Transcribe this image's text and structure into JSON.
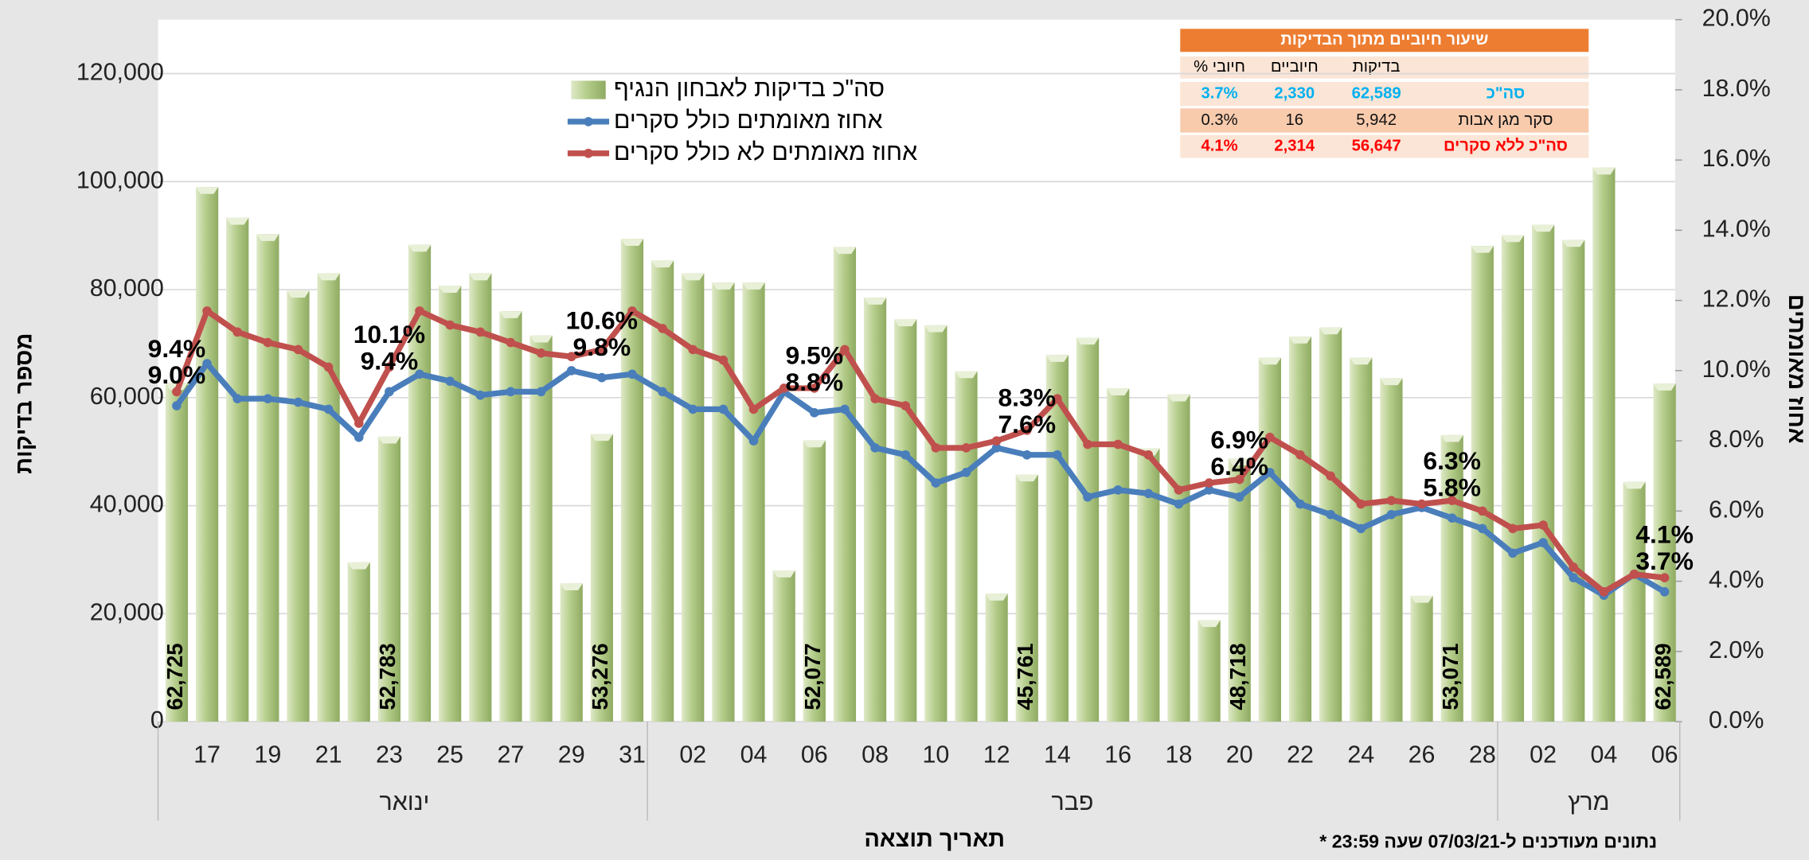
{
  "chart_data": {
    "type": "bar",
    "categories": [
      null,
      "17",
      null,
      "19",
      null,
      "21",
      null,
      "23",
      null,
      "25",
      null,
      "27",
      null,
      "29",
      null,
      "31",
      null,
      "02",
      null,
      "04",
      null,
      "06",
      null,
      "08",
      null,
      "10",
      null,
      "12",
      null,
      "14",
      null,
      "16",
      null,
      "18",
      null,
      "20",
      null,
      "22",
      null,
      "24",
      null,
      "26",
      null,
      "28",
      null,
      "02",
      null,
      "04",
      null,
      "06"
    ],
    "month_groups": [
      {
        "label": "ינואר",
        "days": 16
      },
      {
        "label": "פבר",
        "days": 28
      },
      {
        "label": "מרץ",
        "days": 6
      }
    ],
    "series": [
      {
        "name": "סה\"כ בדיקות לאבחון הנגיף",
        "type": "bar",
        "color": "#a9c47f",
        "values": [
          62725,
          99000,
          93300,
          90300,
          79800,
          83000,
          29500,
          52783,
          88300,
          80700,
          83000,
          76000,
          71500,
          25600,
          53276,
          89400,
          85400,
          83000,
          81300,
          81300,
          28000,
          52077,
          87900,
          78500,
          74500,
          73400,
          64900,
          23700,
          45761,
          67900,
          71100,
          61700,
          50600,
          60600,
          18800,
          48718,
          67400,
          71300,
          73000,
          67400,
          63600,
          23300,
          53071,
          88100,
          90100,
          92000,
          89200,
          102600,
          44400,
          62589
        ],
        "value_labels": [
          "62,725",
          null,
          null,
          null,
          null,
          null,
          null,
          "52,783",
          null,
          null,
          null,
          null,
          null,
          null,
          "53,276",
          null,
          null,
          null,
          null,
          null,
          null,
          "52,077",
          null,
          null,
          null,
          null,
          null,
          null,
          "45,761",
          null,
          null,
          null,
          null,
          null,
          null,
          "48,718",
          null,
          null,
          null,
          null,
          null,
          null,
          "53,071",
          null,
          null,
          null,
          null,
          null,
          null,
          "62,589"
        ]
      },
      {
        "name": "אחוז מאומתים כולל סקרים",
        "type": "line",
        "axis": "y2",
        "color": "#4a7ebb",
        "values": [
          9.0,
          10.2,
          9.2,
          9.2,
          9.1,
          8.9,
          8.1,
          9.4,
          9.9,
          9.7,
          9.3,
          9.4,
          9.4,
          10.0,
          9.8,
          9.9,
          9.4,
          8.9,
          8.9,
          8.0,
          9.4,
          8.8,
          8.9,
          7.8,
          7.6,
          6.8,
          7.1,
          7.8,
          7.6,
          7.6,
          6.4,
          6.6,
          6.5,
          6.2,
          6.6,
          6.4,
          7.1,
          6.2,
          5.9,
          5.5,
          5.9,
          6.1,
          5.8,
          5.5,
          4.8,
          5.1,
          4.1,
          3.6,
          4.2,
          3.7
        ],
        "value_labels": [
          "9.0%",
          null,
          null,
          null,
          null,
          null,
          null,
          "9.4%",
          null,
          null,
          null,
          null,
          null,
          null,
          "9.8%",
          null,
          null,
          null,
          null,
          null,
          null,
          "8.8%",
          null,
          null,
          null,
          null,
          null,
          null,
          "7.6%",
          null,
          null,
          null,
          null,
          null,
          null,
          "6.4%",
          null,
          null,
          null,
          null,
          null,
          null,
          "5.8%",
          null,
          null,
          null,
          null,
          null,
          null,
          "3.7%"
        ]
      },
      {
        "name": "אחוז מאומתים לא כולל סקרים",
        "type": "line",
        "axis": "y2",
        "color": "#c0504d",
        "values": [
          9.4,
          11.7,
          11.1,
          10.8,
          10.6,
          10.1,
          8.5,
          10.1,
          11.7,
          11.3,
          11.1,
          10.8,
          10.5,
          10.4,
          10.6,
          11.7,
          11.2,
          10.6,
          10.3,
          8.9,
          9.5,
          9.5,
          10.6,
          9.2,
          9.0,
          7.8,
          7.8,
          8.0,
          8.3,
          9.2,
          7.9,
          7.9,
          7.6,
          6.6,
          6.8,
          6.9,
          8.1,
          7.6,
          7.0,
          6.2,
          6.3,
          6.2,
          6.3,
          6.0,
          5.5,
          5.6,
          4.4,
          3.7,
          4.2,
          4.1
        ],
        "value_labels": [
          "9.4%",
          null,
          null,
          null,
          null,
          null,
          null,
          "10.1%",
          null,
          null,
          null,
          null,
          null,
          null,
          "10.6%",
          null,
          null,
          null,
          null,
          null,
          null,
          "9.5%",
          null,
          null,
          null,
          null,
          null,
          null,
          "8.3%",
          null,
          null,
          null,
          null,
          null,
          null,
          "6.9%",
          null,
          null,
          null,
          null,
          null,
          null,
          "6.3%",
          null,
          null,
          null,
          null,
          null,
          null,
          "4.1%"
        ]
      }
    ],
    "ylim": [
      0,
      130000
    ],
    "yticks": [
      0,
      {
        "value": 20000,
        "label": "20,000"
      },
      {
        "value": 40000,
        "label": "40,000"
      },
      {
        "value": 60000,
        "label": "60,000"
      },
      {
        "value": 80000,
        "label": "80,000"
      },
      {
        "value": 100000,
        "label": "100,000"
      },
      {
        "value": 120000,
        "label": "120,000"
      }
    ],
    "y2lim": [
      0,
      20
    ],
    "y2ticks": [
      {
        "value": 0,
        "label": "0.0%"
      },
      {
        "value": 2,
        "label": "2.0%"
      },
      {
        "value": 4,
        "label": "4.0%"
      },
      {
        "value": 6,
        "label": "6.0%"
      },
      {
        "value": 8,
        "label": "8.0%"
      },
      {
        "value": 10,
        "label": "10.0%"
      },
      {
        "value": 12,
        "label": "12.0%"
      },
      {
        "value": 14,
        "label": "14.0%"
      },
      {
        "value": 16,
        "label": "16.0%"
      },
      {
        "value": 18,
        "label": "18.0%"
      },
      {
        "value": 20,
        "label": "20.0%"
      }
    ],
    "grid": true,
    "xlabel": "תאריך תוצאה",
    "ylabel": "מספר בדיקות",
    "y2label": "אחוז מאומתים",
    "note": "* נתונים מעודכנים ל-07/03/21 שעה 23:59"
  },
  "table": {
    "title": "שיעור חיוביים מתוך הבדיקות",
    "header": [
      "בדיקות",
      "חיוביים",
      "% חיובי"
    ],
    "rows": [
      [
        "סה\"כ",
        "62,589",
        "2,330",
        "3.7%"
      ],
      [
        "סקר מגן אבות",
        "5,942",
        "16",
        "0.3%"
      ],
      [
        "סה\"כ ללא סקרים",
        "56,647",
        "2,314",
        "4.1%"
      ]
    ]
  }
}
